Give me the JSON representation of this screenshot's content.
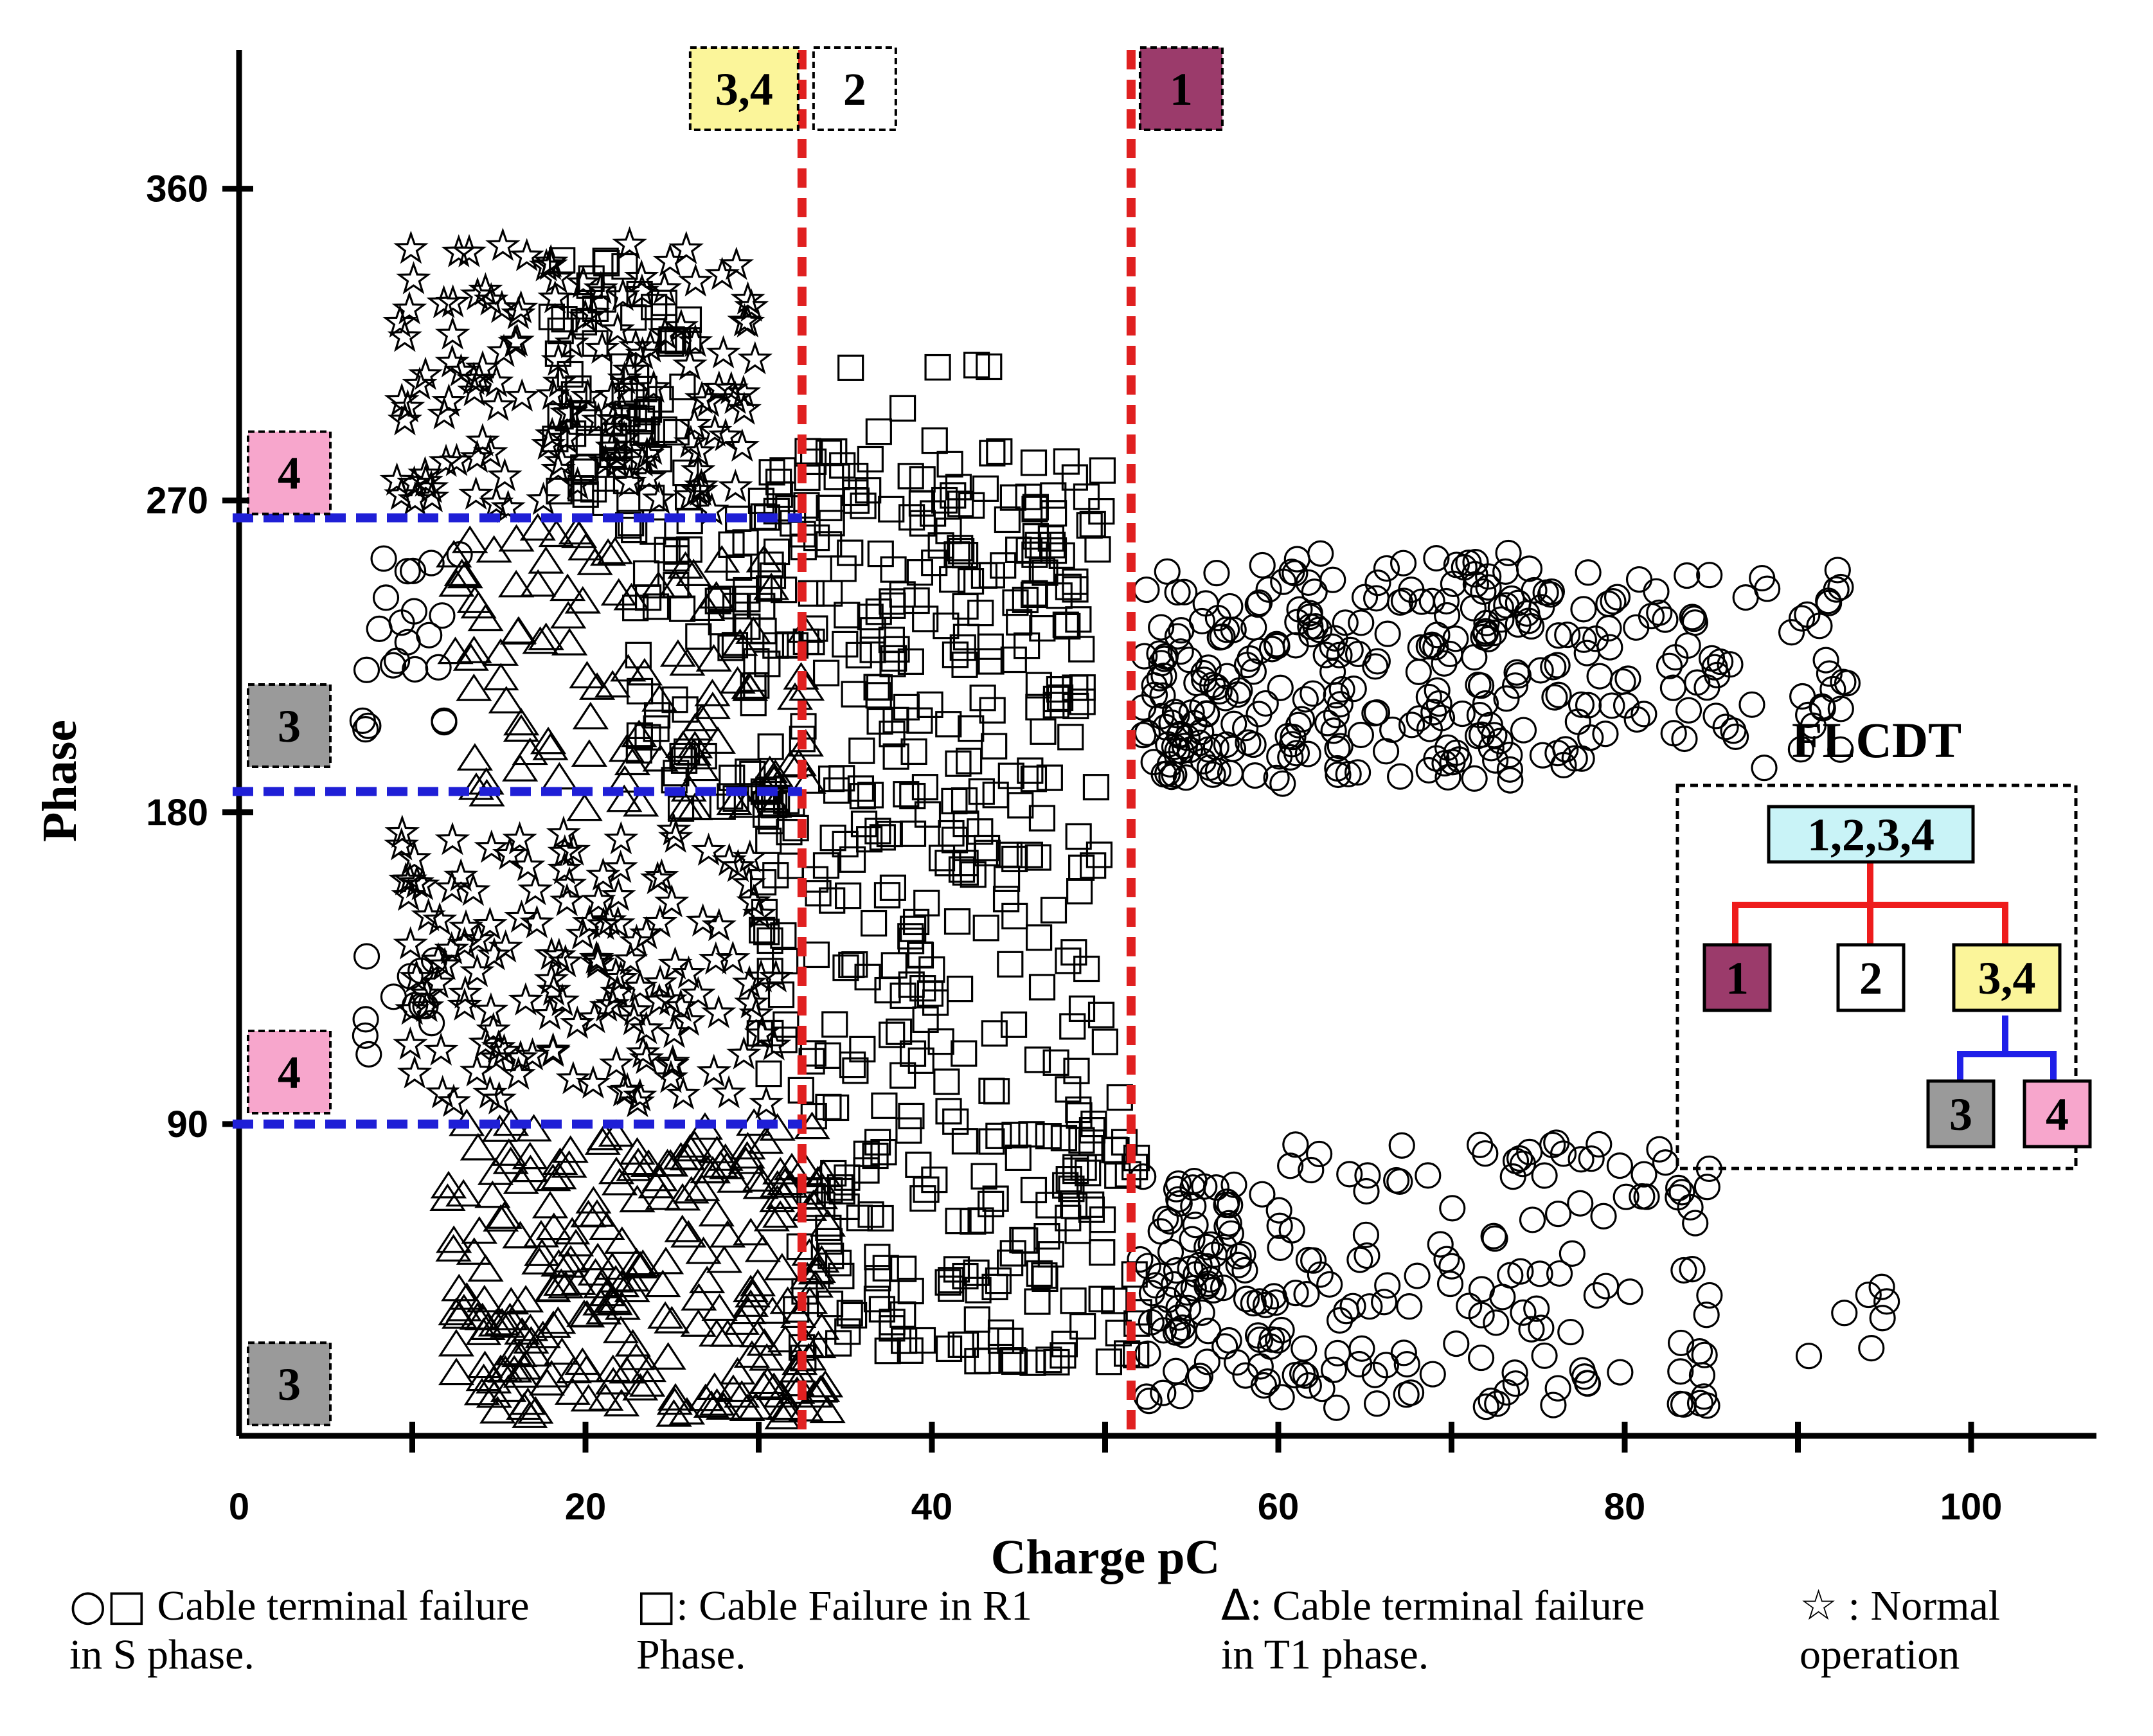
{
  "chart_data": {
    "type": "scatter",
    "xlabel": "Charge pC",
    "ylabel": "Phase",
    "xlim": [
      0,
      107
    ],
    "ylim": [
      0,
      378
    ],
    "x_ticks": [
      0,
      20,
      40,
      60,
      80,
      100
    ],
    "y_ticks": [
      90,
      180,
      270,
      360
    ],
    "series": [
      {
        "marker": "circle",
        "clusters": [
          {
            "x": [
              7,
              12
            ],
            "y": [
              110,
              140
            ],
            "n": 12
          },
          {
            "x": [
              7,
              13
            ],
            "y": [
              195,
              255
            ],
            "n": 22
          },
          {
            "x": [
              52,
              58
            ],
            "y": [
              190,
              250
            ],
            "n": 80
          },
          {
            "x": [
              58,
              75
            ],
            "y": [
              188,
              255
            ],
            "n": 170
          },
          {
            "x": [
              75,
              93
            ],
            "y": [
              190,
              250
            ],
            "n": 95
          },
          {
            "x": [
              52,
              60
            ],
            "y": [
              10,
              75
            ],
            "n": 90
          },
          {
            "x": [
              60,
              85
            ],
            "y": [
              8,
              85
            ],
            "n": 140
          },
          {
            "x": [
              88,
              98
            ],
            "y": [
              20,
              45
            ],
            "n": 7
          }
        ]
      },
      {
        "marker": "square",
        "clusters": [
          {
            "x": [
              18,
              26
            ],
            "y": [
              265,
              340
            ],
            "n": 70
          },
          {
            "x": [
              22,
              30
            ],
            "y": [
              180,
              265
            ],
            "n": 55
          },
          {
            "x": [
              30,
              50
            ],
            "y": [
              182,
              285
            ],
            "n": 210
          },
          {
            "x": [
              30,
              50
            ],
            "y": [
              100,
              180
            ],
            "n": 120
          },
          {
            "x": [
              32,
              52
            ],
            "y": [
              20,
              100
            ],
            "n": 150
          },
          {
            "x": [
              34,
              44
            ],
            "y": [
              280,
              310
            ],
            "n": 8
          }
        ]
      },
      {
        "marker": "triangle",
        "clusters": [
          {
            "x": [
              12,
              33
            ],
            "y": [
              180,
              262
            ],
            "n": 110
          },
          {
            "x": [
              12,
              34
            ],
            "y": [
              5,
              90
            ],
            "n": 260
          }
        ]
      },
      {
        "marker": "star",
        "clusters": [
          {
            "x": [
              9,
              30
            ],
            "y": [
              265,
              345
            ],
            "n": 140
          },
          {
            "x": [
              9,
              31
            ],
            "y": [
              95,
              175
            ],
            "n": 150
          }
        ]
      }
    ],
    "thresholds_x": [
      32.5,
      51.5
    ],
    "thresholds_y": [
      90,
      186,
      265
    ],
    "region_labels": {
      "top_x": [
        "3,4",
        "2",
        "1"
      ],
      "left_y": [
        "4",
        "3",
        "4",
        "3"
      ]
    },
    "colors": {
      "threshold_x": "#e02020",
      "threshold_y": "#1f1fd6",
      "class_1": "#9b3b6b",
      "class_2": "#ffffff",
      "class_34": "#fbf59a",
      "class_3": "#9a9a9a",
      "class_4": "#f7a6cc",
      "root": "#c9f3f7",
      "tree_edge_top": "#ee1c1c",
      "tree_edge_sub": "#1f1fe8"
    }
  },
  "tree": {
    "title": "FLCDT",
    "root": "1,2,3,4",
    "children": [
      "1",
      "2",
      "3,4"
    ],
    "grandchildren": [
      "3",
      "4"
    ]
  },
  "legend": [
    {
      "symbol": "○□",
      "text_line1": "Cable terminal failure",
      "text_line2": "in S phase."
    },
    {
      "symbol": "□",
      "text_line1": ": Cable  Failure  in  R1",
      "text_line2": "Phase."
    },
    {
      "symbol": "Δ",
      "text_line1": ": Cable terminal failure",
      "text_line2": "in T1 phase."
    },
    {
      "symbol": "☆",
      "text_line1": ": Normal",
      "text_line2": "operation"
    }
  ]
}
